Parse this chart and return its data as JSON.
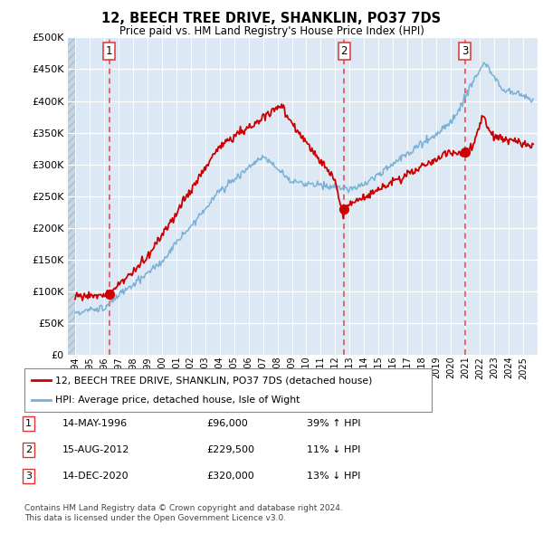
{
  "title": "12, BEECH TREE DRIVE, SHANKLIN, PO37 7DS",
  "subtitle": "Price paid vs. HM Land Registry's House Price Index (HPI)",
  "ylim": [
    0,
    500000
  ],
  "yticks": [
    0,
    50000,
    100000,
    150000,
    200000,
    250000,
    300000,
    350000,
    400000,
    450000,
    500000
  ],
  "background_main": "#dce9f5",
  "background_hatch": "#c8d9e8",
  "grid_color": "#ffffff",
  "sale_dates": [
    1996.37,
    2012.62,
    2020.96
  ],
  "sale_prices": [
    96000,
    229500,
    320000
  ],
  "sale_labels": [
    "1",
    "2",
    "3"
  ],
  "sale_color": "#cc0000",
  "hpi_color": "#7ab0d4",
  "vline_color": "#dd3333",
  "legend_line1": "12, BEECH TREE DRIVE, SHANKLIN, PO37 7DS (detached house)",
  "legend_line2": "HPI: Average price, detached house, Isle of Wight",
  "table_rows": [
    {
      "num": "1",
      "date": "14-MAY-1996",
      "price": "£96,000",
      "change": "39% ↑ HPI"
    },
    {
      "num": "2",
      "date": "15-AUG-2012",
      "price": "£229,500",
      "change": "11% ↓ HPI"
    },
    {
      "num": "3",
      "date": "14-DEC-2020",
      "price": "£320,000",
      "change": "13% ↓ HPI"
    }
  ],
  "footnote1": "Contains HM Land Registry data © Crown copyright and database right 2024.",
  "footnote2": "This data is licensed under the Open Government Licence v3.0.",
  "xmin": 1993.5,
  "xmax": 2026.0
}
